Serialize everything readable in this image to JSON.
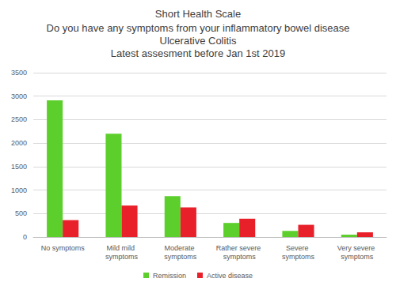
{
  "chart_data": {
    "type": "bar",
    "title": "Short Health Scale",
    "subtitle": [
      "Do you have any symptoms from your inflammatory bowel disease",
      "Ulcerative Colitis",
      "Latest assesment before Jan 1st 2019"
    ],
    "categories": [
      "No symptoms",
      "Mild mild symptoms",
      "Moderate symptoms",
      "Rather severe symptoms",
      "Severe symptoms",
      "Very severe symptoms"
    ],
    "series": [
      {
        "name": "Remission",
        "color": "#5ccf2c",
        "values": [
          2910,
          2200,
          870,
          300,
          130,
          50
        ]
      },
      {
        "name": "Active disease",
        "color": "#e8202a",
        "values": [
          360,
          670,
          630,
          390,
          260,
          100
        ]
      }
    ],
    "ylim": [
      0,
      3500
    ],
    "yticks": [
      0,
      500,
      1000,
      1500,
      2000,
      2500,
      3000,
      3500
    ],
    "grid": true,
    "legend": "bottom"
  }
}
